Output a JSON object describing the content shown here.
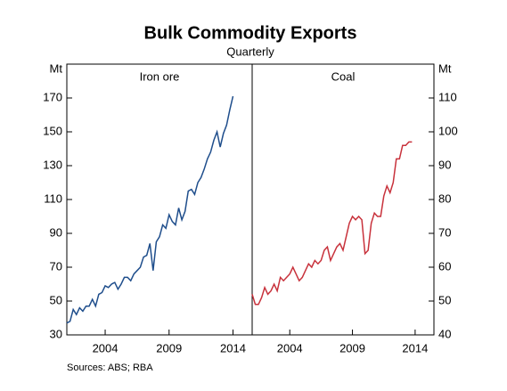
{
  "title": "Bulk Commodity Exports",
  "subtitle": "Quarterly",
  "source": "Sources:  ABS; RBA",
  "chart_data": [
    {
      "type": "line",
      "title": "Iron ore",
      "ylabel": "Mt",
      "axis_side": "left",
      "color": "#1f4e8c",
      "xlim": [
        2001,
        2015.5
      ],
      "xticks": [
        2004,
        2009,
        2014
      ],
      "ylim": [
        30,
        190
      ],
      "yticks": [
        30,
        50,
        70,
        90,
        110,
        130,
        150,
        170
      ],
      "x": [
        2001,
        2001.25,
        2001.5,
        2001.75,
        2002,
        2002.25,
        2002.5,
        2002.75,
        2003,
        2003.25,
        2003.5,
        2003.75,
        2004,
        2004.25,
        2004.5,
        2004.75,
        2005,
        2005.25,
        2005.5,
        2005.75,
        2006,
        2006.25,
        2006.5,
        2006.75,
        2007,
        2007.25,
        2007.5,
        2007.75,
        2008,
        2008.25,
        2008.5,
        2008.75,
        2009,
        2009.25,
        2009.5,
        2009.75,
        2010,
        2010.25,
        2010.5,
        2010.75,
        2011,
        2011.25,
        2011.5,
        2011.75,
        2012,
        2012.25,
        2012.5,
        2012.75,
        2013,
        2013.25,
        2013.5,
        2013.75,
        2014
      ],
      "series": [
        {
          "name": "Iron ore",
          "color": "#1f4e8c",
          "values": [
            37,
            38,
            45,
            42,
            46,
            44,
            47,
            47,
            51,
            47,
            54,
            55,
            59,
            58,
            60,
            61,
            57,
            60,
            64,
            64,
            62,
            66,
            68,
            70,
            76,
            77,
            84,
            68,
            85,
            88,
            95,
            93,
            101,
            97,
            95,
            105,
            98,
            103,
            115,
            116,
            113,
            120,
            123,
            128,
            134,
            138,
            145,
            150,
            141,
            149,
            154,
            163,
            171
          ]
        }
      ]
    },
    {
      "type": "line",
      "title": "Coal",
      "ylabel": "Mt",
      "axis_side": "right",
      "color": "#c8323c",
      "xlim": [
        2001,
        2015.5
      ],
      "xticks": [
        2004,
        2009,
        2014
      ],
      "ylim": [
        40,
        120
      ],
      "yticks": [
        40,
        50,
        60,
        70,
        80,
        90,
        100,
        110
      ],
      "x": [
        2001,
        2001.25,
        2001.5,
        2001.75,
        2002,
        2002.25,
        2002.5,
        2002.75,
        2003,
        2003.25,
        2003.5,
        2003.75,
        2004,
        2004.25,
        2004.5,
        2004.75,
        2005,
        2005.25,
        2005.5,
        2005.75,
        2006,
        2006.25,
        2006.5,
        2006.75,
        2007,
        2007.25,
        2007.5,
        2007.75,
        2008,
        2008.25,
        2008.5,
        2008.75,
        2009,
        2009.25,
        2009.5,
        2009.75,
        2010,
        2010.25,
        2010.5,
        2010.75,
        2011,
        2011.25,
        2011.5,
        2011.75,
        2012,
        2012.25,
        2012.5,
        2012.75,
        2013,
        2013.25,
        2013.5,
        2013.75,
        2014
      ],
      "series": [
        {
          "name": "Coal",
          "color": "#c8323c",
          "values": [
            52,
            49,
            49,
            51,
            54,
            52,
            53,
            55,
            53,
            57,
            56,
            57,
            58,
            60,
            58,
            56,
            57,
            59,
            61,
            60,
            62,
            61,
            62,
            65,
            66,
            62,
            64,
            66,
            67,
            65,
            69,
            73,
            75,
            74,
            75,
            74,
            64,
            65,
            73,
            76,
            75,
            75,
            81,
            84,
            82,
            85,
            92,
            92,
            96,
            96,
            97,
            97,
            null
          ]
        }
      ]
    }
  ]
}
